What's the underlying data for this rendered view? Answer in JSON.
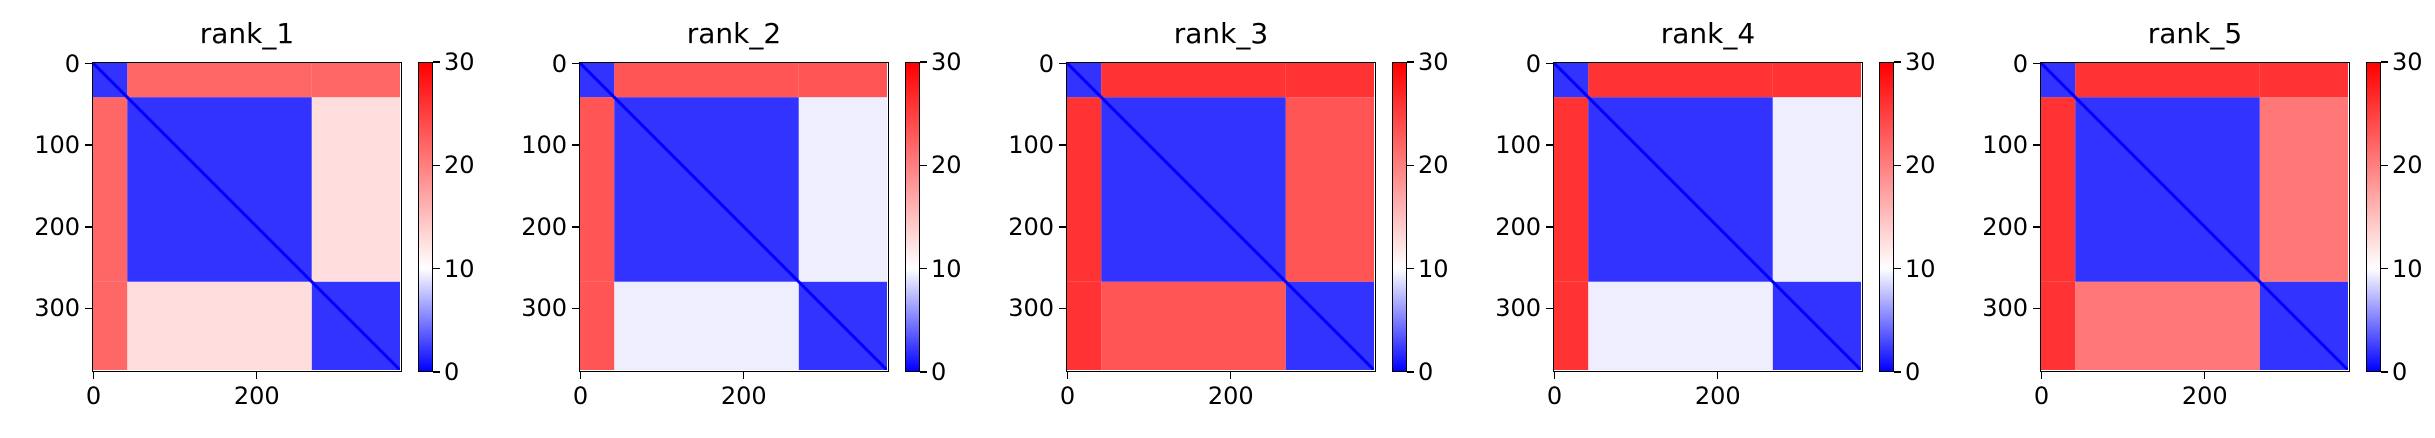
{
  "chart_data": [
    {
      "type": "heatmap",
      "title": "rank_1",
      "xlim": [
        0,
        376
      ],
      "ylim": [
        376,
        0
      ],
      "xticks": [
        0,
        200
      ],
      "xtick_labels": [
        "0",
        "200"
      ],
      "yticks": [
        0,
        100,
        200,
        300
      ],
      "ytick_labels": [
        "0",
        "100",
        "200",
        "300"
      ],
      "colorbar": {
        "range": [
          0,
          30
        ],
        "ticks": [
          0,
          10,
          20,
          30
        ],
        "tick_labels": [
          "0",
          "10",
          "20",
          "30"
        ],
        "colormap": "bwr"
      },
      "domains": [
        [
          0,
          42
        ],
        [
          42,
          268
        ],
        [
          268,
          376
        ]
      ],
      "block_values": [
        [
          3,
          24,
          24
        ],
        [
          24,
          3,
          17
        ],
        [
          24,
          17,
          3
        ]
      ],
      "diagonal_value": 0
    },
    {
      "type": "heatmap",
      "title": "rank_2",
      "xlim": [
        0,
        376
      ],
      "ylim": [
        376,
        0
      ],
      "xticks": [
        0,
        200
      ],
      "xtick_labels": [
        "0",
        "200"
      ],
      "yticks": [
        0,
        100,
        200,
        300
      ],
      "ytick_labels": [
        "0",
        "100",
        "200",
        "300"
      ],
      "colorbar": {
        "range": [
          0,
          30
        ],
        "ticks": [
          0,
          10,
          20,
          30
        ],
        "tick_labels": [
          "0",
          "10",
          "20",
          "30"
        ],
        "colormap": "bwr"
      },
      "domains": [
        [
          0,
          42
        ],
        [
          42,
          268
        ],
        [
          268,
          376
        ]
      ],
      "block_values": [
        [
          3,
          25,
          25
        ],
        [
          25,
          3,
          14
        ],
        [
          25,
          14,
          3
        ]
      ],
      "diagonal_value": 0
    },
    {
      "type": "heatmap",
      "title": "rank_3",
      "xlim": [
        0,
        376
      ],
      "ylim": [
        376,
        0
      ],
      "xticks": [
        0,
        200
      ],
      "xtick_labels": [
        "0",
        "200"
      ],
      "yticks": [
        0,
        100,
        200,
        300
      ],
      "ytick_labels": [
        "0",
        "100",
        "200",
        "300"
      ],
      "colorbar": {
        "range": [
          0,
          30
        ],
        "ticks": [
          0,
          10,
          20,
          30
        ],
        "tick_labels": [
          "0",
          "10",
          "20",
          "30"
        ],
        "colormap": "bwr"
      },
      "domains": [
        [
          0,
          42
        ],
        [
          42,
          268
        ],
        [
          268,
          376
        ]
      ],
      "block_values": [
        [
          3,
          27,
          27
        ],
        [
          27,
          3,
          25
        ],
        [
          27,
          25,
          3
        ]
      ],
      "diagonal_value": 0
    },
    {
      "type": "heatmap",
      "title": "rank_4",
      "xlim": [
        0,
        376
      ],
      "ylim": [
        376,
        0
      ],
      "xticks": [
        0,
        200
      ],
      "xtick_labels": [
        "0",
        "200"
      ],
      "yticks": [
        0,
        100,
        200,
        300
      ],
      "ytick_labels": [
        "0",
        "100",
        "200",
        "300"
      ],
      "colorbar": {
        "range": [
          0,
          30
        ],
        "ticks": [
          0,
          10,
          20,
          30
        ],
        "tick_labels": [
          "0",
          "10",
          "20",
          "30"
        ],
        "colormap": "bwr"
      },
      "domains": [
        [
          0,
          42
        ],
        [
          42,
          268
        ],
        [
          268,
          376
        ]
      ],
      "block_values": [
        [
          3,
          27,
          27
        ],
        [
          27,
          3,
          14
        ],
        [
          27,
          14,
          3
        ]
      ],
      "diagonal_value": 0
    },
    {
      "type": "heatmap",
      "title": "rank_5",
      "xlim": [
        0,
        376
      ],
      "ylim": [
        376,
        0
      ],
      "xticks": [
        0,
        200
      ],
      "xtick_labels": [
        "0",
        "200"
      ],
      "yticks": [
        0,
        100,
        200,
        300
      ],
      "ytick_labels": [
        "0",
        "100",
        "200",
        "300"
      ],
      "colorbar": {
        "range": [
          0,
          30
        ],
        "ticks": [
          0,
          10,
          20,
          30
        ],
        "tick_labels": [
          "0",
          "10",
          "20",
          "30"
        ],
        "colormap": "bwr"
      },
      "domains": [
        [
          0,
          42
        ],
        [
          42,
          268
        ],
        [
          268,
          376
        ]
      ],
      "block_values": [
        [
          3,
          27,
          27
        ],
        [
          27,
          3,
          23
        ],
        [
          27,
          23,
          3
        ]
      ],
      "diagonal_value": 0
    }
  ]
}
